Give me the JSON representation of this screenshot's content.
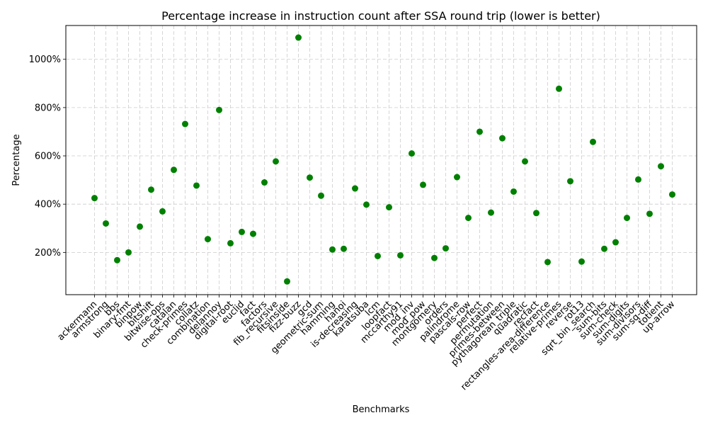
{
  "chart_data": {
    "type": "scatter",
    "title": "Percentage increase in instruction count after SSA round trip (lower is better)",
    "xlabel": "Benchmarks",
    "ylabel": "Percentage",
    "ytick_values": [
      200,
      400,
      600,
      800,
      1000
    ],
    "ytick_labels": [
      "200%",
      "400%",
      "600%",
      "800%",
      "1000%"
    ],
    "ylim": [
      25,
      1140
    ],
    "grid": true,
    "marker_color": "#008000",
    "categories": [
      "ackermann",
      "armstrong",
      "bbs",
      "binary-fmt",
      "binpow",
      "bitshift",
      "bitwise-ops",
      "catalan",
      "check-primes",
      "collatz",
      "combination",
      "delannoy",
      "digital-root",
      "euclid",
      "fact",
      "factors",
      "fib_recursive",
      "fitsinside",
      "fizz-buzz",
      "gcd",
      "geometric-sum",
      "hamming",
      "hanoi",
      "is-decreasing",
      "karatsuba",
      "lcm",
      "loopfact",
      "mccarthy91",
      "mod_inv",
      "mod_pow",
      "montgomery",
      "orders",
      "palindrome",
      "pascals-row",
      "perfect",
      "permutation",
      "primes-between",
      "pythagorean_triple",
      "quadratic",
      "recfact",
      "rectangles-area-difference",
      "relative-primes",
      "reverse",
      "rot13",
      "sqrt_bin_search",
      "sum-bits",
      "sum-check",
      "sum-digits",
      "sum-divisors",
      "sum-sq-diff",
      "totient",
      "up-arrow"
    ],
    "values": [
      425,
      320,
      168,
      200,
      307,
      460,
      370,
      542,
      732,
      477,
      255,
      790,
      238,
      285,
      277,
      490,
      577,
      80,
      1090,
      510,
      435,
      212,
      215,
      465,
      398,
      185,
      387,
      188,
      610,
      480,
      177,
      217,
      512,
      343,
      700,
      365,
      673,
      452,
      577,
      363,
      160,
      878,
      495,
      162,
      658,
      215,
      242,
      343,
      502,
      360,
      557,
      440
    ]
  }
}
